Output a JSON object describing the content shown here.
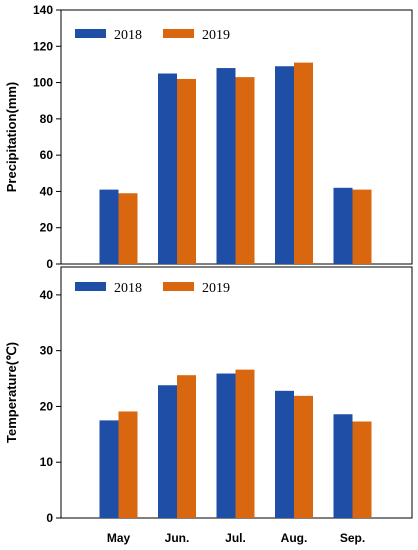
{
  "chart_data": [
    {
      "type": "bar",
      "categories": [
        "May",
        "Jun.",
        "Jul.",
        "Aug.",
        "Sep."
      ],
      "ylabel": "Precipitation(mm)",
      "ylim": [
        0,
        140
      ],
      "yticks": [
        0,
        20,
        40,
        60,
        80,
        100,
        120,
        140
      ],
      "show_xtick_labels": false,
      "legend": "top-left",
      "series": [
        {
          "name": "2018",
          "color": "#1f4ea6",
          "values": [
            41,
            105,
            108,
            109,
            42
          ]
        },
        {
          "name": "2019",
          "color": "#d9670f",
          "values": [
            39,
            102,
            103,
            111,
            41
          ]
        }
      ]
    },
    {
      "type": "bar",
      "categories": [
        "May",
        "Jun.",
        "Jul.",
        "Aug.",
        "Sep."
      ],
      "ylabel": "Temperature(℃)",
      "ylim": [
        0,
        45
      ],
      "yticks": [
        0,
        10,
        20,
        30,
        40
      ],
      "show_xtick_labels": true,
      "legend": "top-left",
      "series": [
        {
          "name": "2018",
          "color": "#1f4ea6",
          "values": [
            17.5,
            23.8,
            25.9,
            22.8,
            18.6
          ]
        },
        {
          "name": "2019",
          "color": "#d9670f",
          "values": [
            19.1,
            25.6,
            26.6,
            21.9,
            17.3
          ]
        }
      ]
    }
  ]
}
